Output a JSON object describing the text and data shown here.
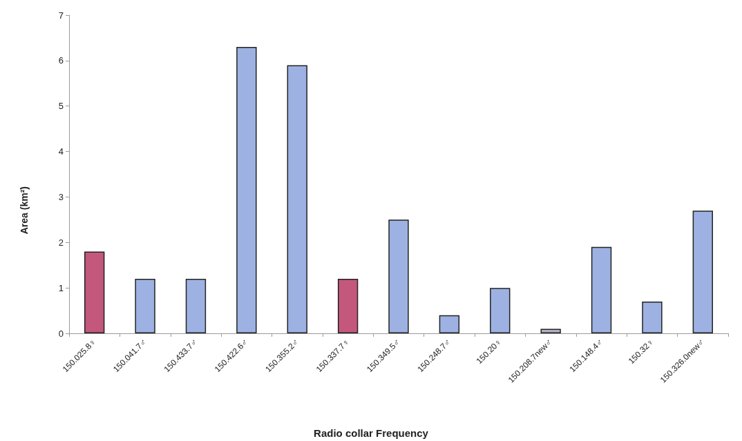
{
  "chart_data": {
    "type": "bar",
    "xlabel": "Radio collar Frequency",
    "ylabel": "Area (km²)",
    "categories": [
      "150.025.8♀",
      "150.041.7♂",
      "150.433.7♂",
      "150.422.6♂",
      "150.355.2♂",
      "150.337.7♀",
      "150.349.5♂",
      "150.248.7♂",
      "150.20♀",
      "150.208.7new♂",
      "150.148.4♂",
      "150.32♀",
      "150.326.0new♂"
    ],
    "values": [
      1.8,
      1.2,
      1.2,
      6.3,
      5.9,
      1.2,
      2.5,
      0.4,
      1.0,
      0.1,
      1.9,
      0.7,
      2.7
    ],
    "colors": [
      "#c4587c",
      "#9db2e2",
      "#9db2e2",
      "#9db2e2",
      "#9db2e2",
      "#c4587c",
      "#9db2e2",
      "#9db2e2",
      "#9db2e2",
      "#b4b0c4",
      "#9db2e2",
      "#9db2e2",
      "#9db2e2"
    ],
    "ylim": [
      0,
      7
    ],
    "yticks": [
      0,
      1,
      2,
      3,
      4,
      5,
      6,
      7
    ]
  }
}
